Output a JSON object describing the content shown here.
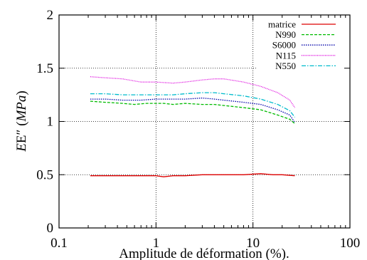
{
  "chart_data": {
    "type": "line",
    "xlabel": "Amplitude de déformation (%).",
    "ylabel_prefix": "E″ (",
    "ylabel_unit": "MPa",
    "ylabel_suffix": ")",
    "xscale": "log",
    "xlim": [
      0.1,
      100
    ],
    "ylim": [
      0,
      2
    ],
    "xticks": [
      0.1,
      1,
      10,
      100
    ],
    "xtick_labels": [
      "0.1",
      "1",
      "10",
      "100"
    ],
    "yticks": [
      0,
      0.5,
      1,
      1.5,
      2
    ],
    "ytick_labels": [
      "0",
      "0.5",
      "1",
      "1.5",
      "2"
    ],
    "grid": true,
    "legend_position": "top-right",
    "series": [
      {
        "name": "matrice",
        "color": "#dd0000",
        "dash": "solid",
        "points": [
          [
            0.21,
            0.49
          ],
          [
            0.3,
            0.49
          ],
          [
            0.45,
            0.49
          ],
          [
            0.7,
            0.49
          ],
          [
            1.0,
            0.49
          ],
          [
            1.2,
            0.48
          ],
          [
            1.5,
            0.49
          ],
          [
            2.0,
            0.49
          ],
          [
            3.0,
            0.5
          ],
          [
            5.0,
            0.5
          ],
          [
            8.0,
            0.5
          ],
          [
            12.0,
            0.51
          ],
          [
            16.0,
            0.5
          ],
          [
            20.0,
            0.5
          ],
          [
            27.0,
            0.49
          ]
        ]
      },
      {
        "name": "N990",
        "color": "#00bb00",
        "dash": "dashed",
        "points": [
          [
            0.21,
            1.19
          ],
          [
            0.3,
            1.18
          ],
          [
            0.45,
            1.17
          ],
          [
            0.6,
            1.16
          ],
          [
            0.8,
            1.17
          ],
          [
            1.2,
            1.17
          ],
          [
            1.5,
            1.16
          ],
          [
            2.0,
            1.17
          ],
          [
            3.0,
            1.16
          ],
          [
            4.0,
            1.16
          ],
          [
            5.0,
            1.15
          ],
          [
            8.0,
            1.13
          ],
          [
            12.0,
            1.11
          ],
          [
            18.0,
            1.06
          ],
          [
            24.0,
            1.02
          ],
          [
            27.0,
            0.98
          ]
        ]
      },
      {
        "name": "S6000",
        "color": "#0000aa",
        "dash": "dotted",
        "points": [
          [
            0.21,
            1.21
          ],
          [
            0.3,
            1.21
          ],
          [
            0.45,
            1.2
          ],
          [
            0.7,
            1.2
          ],
          [
            1.0,
            1.21
          ],
          [
            1.5,
            1.21
          ],
          [
            2.0,
            1.21
          ],
          [
            3.0,
            1.22
          ],
          [
            4.0,
            1.21
          ],
          [
            5.0,
            1.2
          ],
          [
            8.0,
            1.18
          ],
          [
            12.0,
            1.16
          ],
          [
            18.0,
            1.11
          ],
          [
            24.0,
            1.06
          ],
          [
            27.0,
            0.99
          ]
        ]
      },
      {
        "name": "N115",
        "color": "#dd00dd",
        "dash": "fine-dotted",
        "points": [
          [
            0.21,
            1.42
          ],
          [
            0.3,
            1.41
          ],
          [
            0.45,
            1.4
          ],
          [
            0.7,
            1.37
          ],
          [
            1.0,
            1.37
          ],
          [
            1.5,
            1.36
          ],
          [
            2.0,
            1.37
          ],
          [
            3.0,
            1.39
          ],
          [
            4.0,
            1.4
          ],
          [
            5.0,
            1.4
          ],
          [
            8.0,
            1.37
          ],
          [
            12.0,
            1.33
          ],
          [
            18.0,
            1.27
          ],
          [
            24.0,
            1.2
          ],
          [
            27.0,
            1.13
          ]
        ]
      },
      {
        "name": "N550",
        "color": "#00bbcc",
        "dash": "dash-dot",
        "points": [
          [
            0.21,
            1.26
          ],
          [
            0.3,
            1.26
          ],
          [
            0.45,
            1.25
          ],
          [
            0.7,
            1.25
          ],
          [
            1.0,
            1.25
          ],
          [
            1.5,
            1.25
          ],
          [
            2.0,
            1.26
          ],
          [
            3.0,
            1.27
          ],
          [
            4.0,
            1.27
          ],
          [
            5.0,
            1.26
          ],
          [
            8.0,
            1.24
          ],
          [
            12.0,
            1.21
          ],
          [
            18.0,
            1.16
          ],
          [
            24.0,
            1.1
          ],
          [
            27.0,
            1.04
          ]
        ]
      }
    ]
  }
}
